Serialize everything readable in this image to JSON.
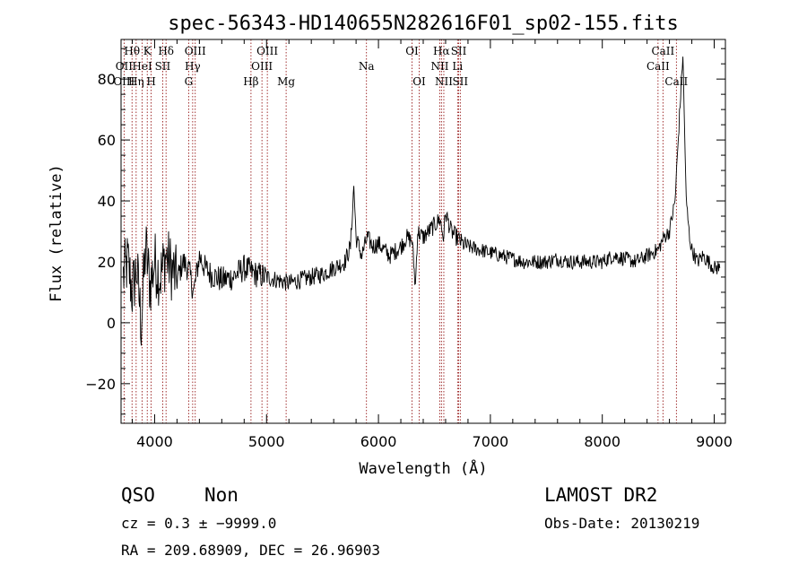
{
  "chart_data": {
    "type": "line",
    "title": "spec-56343-HD140655N282616F01_sp02-155.fits",
    "xlabel": "Wavelength (Å)",
    "ylabel": "Flux (relative)",
    "xlim": [
      3700,
      9100
    ],
    "ylim": [
      -33,
      93
    ],
    "x_ticks": [
      4000,
      5000,
      6000,
      7000,
      8000,
      9000
    ],
    "y_ticks": [
      -20,
      0,
      20,
      40,
      60,
      80
    ],
    "x_tick_labels": [
      "4000",
      "5000",
      "6000",
      "7000",
      "8000",
      "9000"
    ],
    "y_tick_labels": [
      "−20",
      "0",
      "20",
      "40",
      "60",
      "80"
    ],
    "grid": false,
    "series": [
      {
        "color": "#000000",
        "x": [
          3720,
          3760,
          3800,
          3840,
          3880,
          3920,
          3960,
          4000,
          4050,
          4100,
          4150,
          4200,
          4250,
          4300,
          4350,
          4400,
          4450,
          4500,
          4600,
          4700,
          4800,
          4900,
          5000,
          5100,
          5200,
          5300,
          5400,
          5500,
          5600,
          5700,
          5750,
          5780,
          5800,
          5850,
          5900,
          5950,
          6000,
          6100,
          6200,
          6250,
          6300,
          6330,
          6350,
          6400,
          6450,
          6500,
          6550,
          6580,
          6600,
          6650,
          6700,
          6750,
          6800,
          6900,
          7000,
          7100,
          7200,
          7300,
          7400,
          7500,
          7600,
          7700,
          7800,
          7900,
          8000,
          8100,
          8200,
          8300,
          8400,
          8500,
          8550,
          8600,
          8650,
          8700,
          8720,
          8750,
          8780,
          8800,
          8850,
          8900,
          8950,
          9000,
          9050
        ],
        "y": [
          15,
          20,
          10,
          18,
          0,
          25,
          12,
          20,
          15,
          22,
          18,
          14,
          20,
          18,
          10,
          22,
          18,
          16,
          14,
          15,
          18,
          16,
          15,
          14,
          13,
          14,
          15,
          16,
          18,
          20,
          25,
          45,
          28,
          22,
          28,
          25,
          26,
          22,
          25,
          28,
          27,
          12,
          30,
          28,
          30,
          32,
          34,
          28,
          36,
          30,
          28,
          26,
          25,
          24,
          23,
          22,
          21,
          20,
          20,
          20,
          21,
          20,
          20,
          20,
          20,
          22,
          21,
          20,
          22,
          24,
          28,
          30,
          40,
          75,
          88,
          40,
          28,
          24,
          20,
          22,
          20,
          18,
          18
        ]
      }
    ],
    "spectral_lines": {
      "labels": [
        {
          "text": "Hθ",
          "x": 3798,
          "row": 1
        },
        {
          "text": "OII",
          "x": 3727,
          "row": 2
        },
        {
          "text": "OIII",
          "x": 3727,
          "row": 3
        },
        {
          "text": "K",
          "x": 3934,
          "row": 1
        },
        {
          "text": "HeI",
          "x": 3889,
          "row": 2
        },
        {
          "text": "Hη",
          "x": 3835,
          "row": 3
        },
        {
          "text": "Hδ",
          "x": 4102,
          "row": 1
        },
        {
          "text": "SII",
          "x": 4072,
          "row": 2
        },
        {
          "text": "H",
          "x": 3969,
          "row": 3
        },
        {
          "text": "OIII",
          "x": 4363,
          "row": 1
        },
        {
          "text": "Hγ",
          "x": 4340,
          "row": 2
        },
        {
          "text": "G",
          "x": 4304,
          "row": 3
        },
        {
          "text": "OIII",
          "x": 5007,
          "row": 1
        },
        {
          "text": "OIII",
          "x": 4959,
          "row": 2
        },
        {
          "text": "Hβ",
          "x": 4861,
          "row": 3
        },
        {
          "text": "Mg",
          "x": 5175,
          "row": 3
        },
        {
          "text": "Na",
          "x": 5893,
          "row": 2
        },
        {
          "text": "OI",
          "x": 6300,
          "row": 1
        },
        {
          "text": "OI",
          "x": 6364,
          "row": 3
        },
        {
          "text": "Hα",
          "x": 6563,
          "row": 1
        },
        {
          "text": "NII",
          "x": 6548,
          "row": 2
        },
        {
          "text": "NII",
          "x": 6584,
          "row": 3
        },
        {
          "text": "SII",
          "x": 6717,
          "row": 1
        },
        {
          "text": "Li",
          "x": 6707,
          "row": 2
        },
        {
          "text": "SII",
          "x": 6731,
          "row": 3
        },
        {
          "text": "CaII",
          "x": 8542,
          "row": 1
        },
        {
          "text": "CaII",
          "x": 8498,
          "row": 2
        },
        {
          "text": "CaII",
          "x": 8662,
          "row": 3
        }
      ],
      "positions": [
        3727,
        3798,
        3835,
        3889,
        3934,
        3969,
        4072,
        4102,
        4304,
        4340,
        4363,
        4861,
        4959,
        5007,
        5175,
        5893,
        6300,
        6364,
        6548,
        6563,
        6584,
        6707,
        6717,
        6731,
        8498,
        8542,
        8662
      ],
      "color": "#8b0000"
    }
  },
  "info": {
    "class_label": "QSO",
    "subclass_label": "Non",
    "survey": "LAMOST DR2",
    "cz": "cz = 0.3 ± −9999.0",
    "obs_date": "Obs-Date: 20130219",
    "coords": "RA = 209.68909, DEC =  26.96903"
  }
}
